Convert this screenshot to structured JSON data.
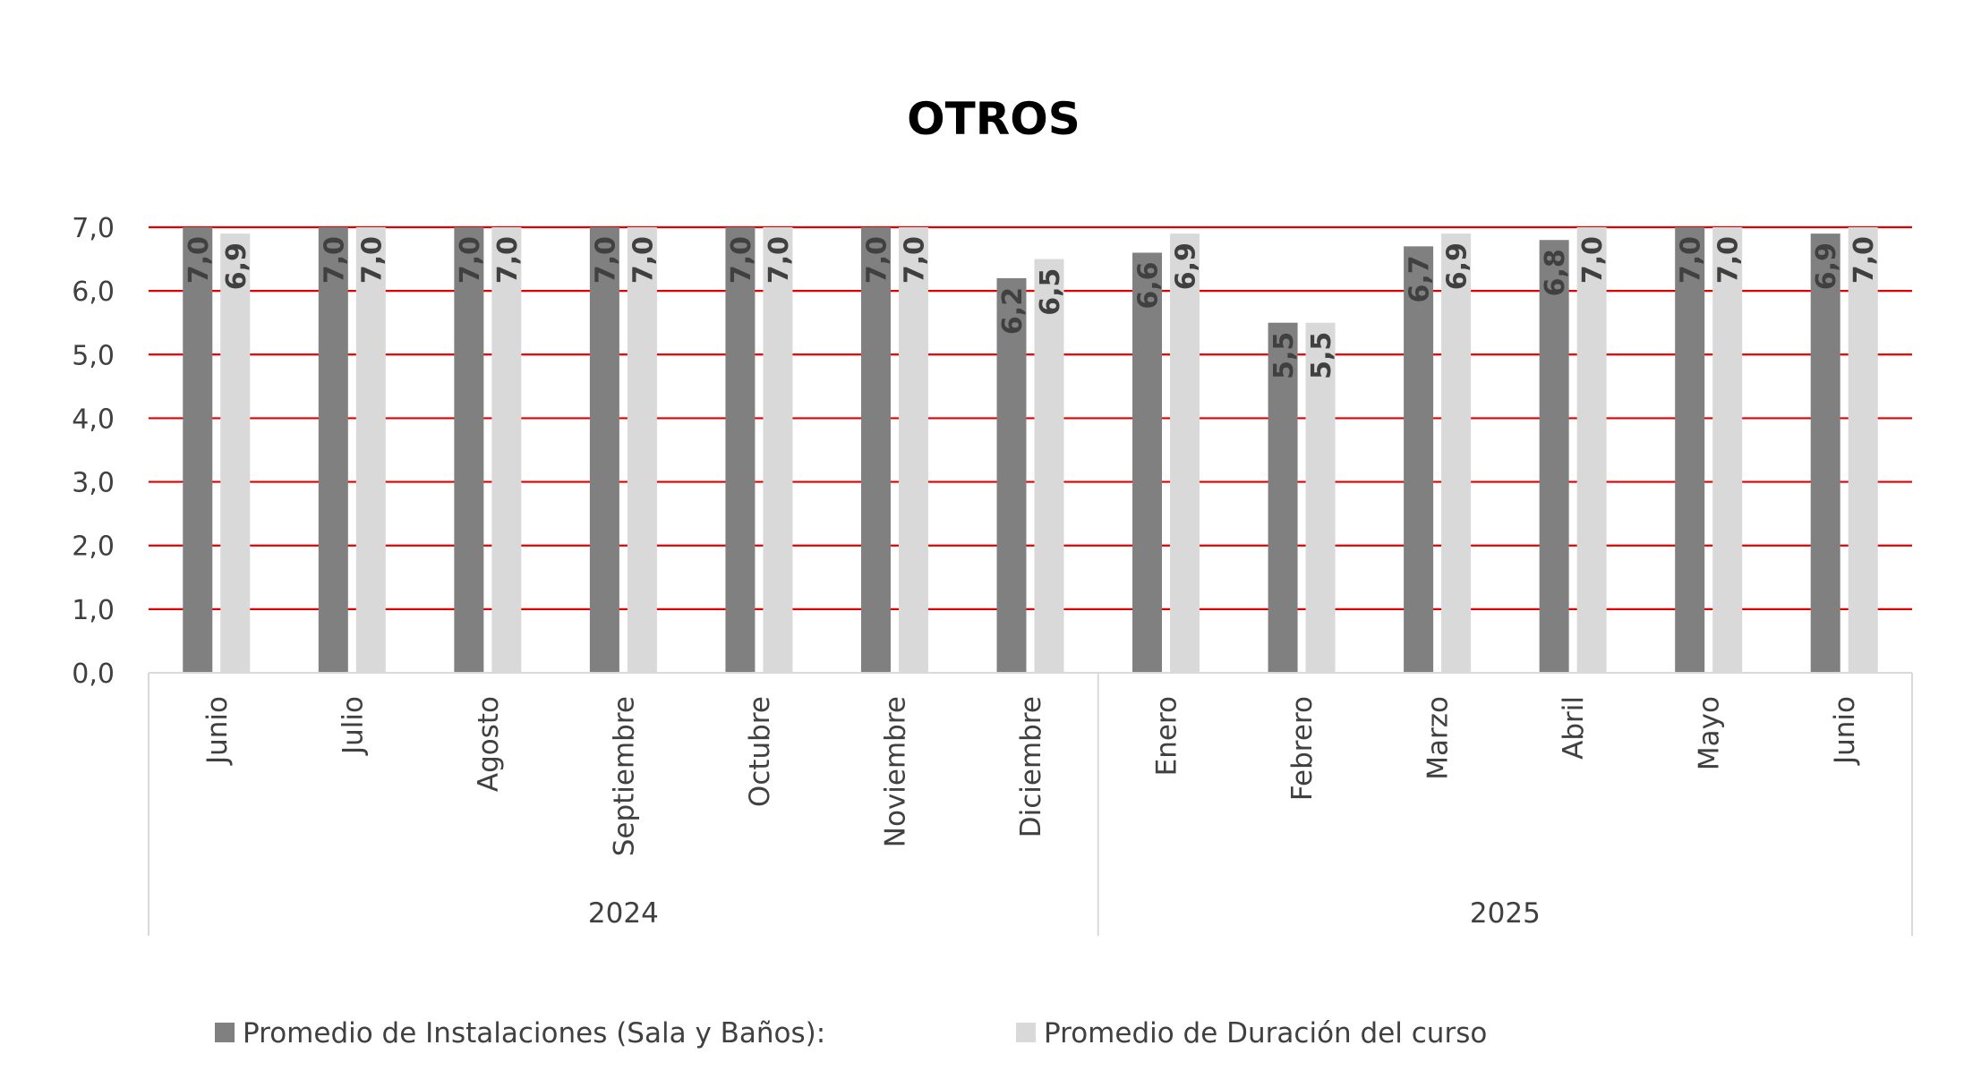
{
  "chart_data": {
    "type": "bar",
    "title": "OTROS",
    "categories": [
      "Junio",
      "Julio",
      "Agosto",
      "Septiembre",
      "Octubre",
      "Noviembre",
      "Diciembre",
      "Enero",
      "Febrero",
      "Marzo",
      "Abril",
      "Mayo",
      "Junio"
    ],
    "groups": [
      {
        "label": "2024",
        "count": 7
      },
      {
        "label": "2025",
        "count": 6
      }
    ],
    "series": [
      {
        "name": "Promedio de Instalaciones (Sala y Baños):",
        "color": "#808080",
        "values": [
          7.0,
          7.0,
          7.0,
          7.0,
          7.0,
          7.0,
          6.2,
          6.6,
          5.5,
          6.7,
          6.8,
          7.0,
          6.9
        ],
        "labels": [
          "7,0",
          "7,0",
          "7,0",
          "7,0",
          "7,0",
          "7,0",
          "6,2",
          "6,6",
          "5,5",
          "6,7",
          "6,8",
          "7,0",
          "6,9"
        ]
      },
      {
        "name": "Promedio de Duración del curso",
        "color": "#d9d9d9",
        "values": [
          6.9,
          7.0,
          7.0,
          7.0,
          7.0,
          7.0,
          6.5,
          6.9,
          5.5,
          6.9,
          7.0,
          7.0,
          7.0
        ],
        "labels": [
          "6,9",
          "7,0",
          "7,0",
          "7,0",
          "7,0",
          "7,0",
          "6,5",
          "6,9",
          "5,5",
          "6,9",
          "7,0",
          "7,0",
          "7,0"
        ]
      }
    ],
    "ylim": [
      0,
      7
    ],
    "yticks": [
      "0,0",
      "1,0",
      "2,0",
      "3,0",
      "4,0",
      "5,0",
      "6,0",
      "7,0"
    ],
    "gridline_color": "#e00000",
    "grid": true,
    "legend_position": "bottom"
  }
}
